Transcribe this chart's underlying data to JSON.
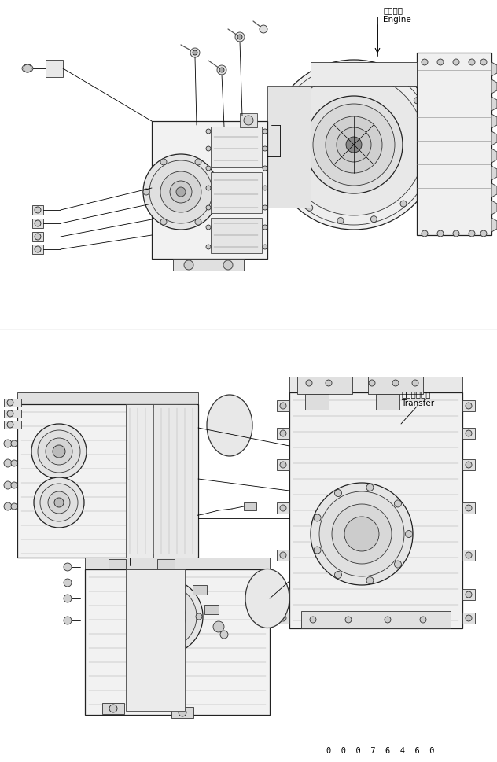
{
  "background_color": "#ffffff",
  "text_color": "#000000",
  "line_color": "#000000",
  "label_engine_jp": "エンジン",
  "label_engine_en": "Engine",
  "label_transfer_jp": "トランスファ",
  "label_transfer_en": "Transfer",
  "part_number": "00076460",
  "figsize": [
    6.32,
    9.7
  ],
  "dpi": 100
}
